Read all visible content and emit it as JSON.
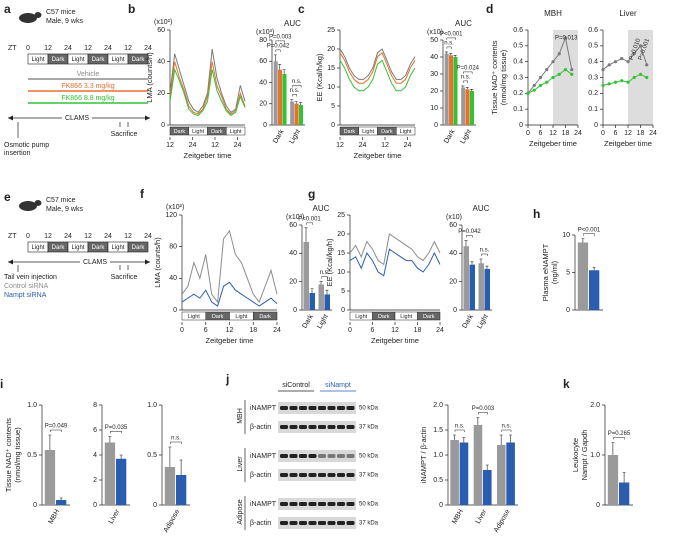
{
  "diagrams": [
    {
      "panel": "a",
      "title": [
        "C57 mice",
        "Male, 9 wks"
      ],
      "zt": "ZT",
      "hours": [
        0,
        12,
        24,
        12,
        24,
        12,
        24
      ],
      "phases": [
        "Light",
        "Dark",
        "Light",
        "Dark",
        "Light",
        "Dark"
      ],
      "groups": [
        {
          "name": "Vehicle",
          "color": "#8c8c8c"
        },
        {
          "name": "FK866 3.3 mg/kg",
          "color": "#e8702a"
        },
        {
          "name": "FK866 8.8 mg/kg",
          "color": "#33c233"
        }
      ],
      "clams": "CLAMS",
      "start": [
        "Osmotic pump",
        "insertion"
      ],
      "end": "Sacrifice"
    },
    {
      "panel": "e",
      "title": [
        "C57 mice",
        "Male, 9 wks"
      ],
      "zt": "ZT",
      "hours": [
        0,
        12,
        24,
        12,
        24,
        12,
        24
      ],
      "phases": [
        "Light",
        "Dark",
        "Light",
        "Dark",
        "Light",
        "Dark"
      ],
      "groups": [
        {
          "name": "Control siRNA",
          "color": "#8c8c8c"
        },
        {
          "name": "Nampt siRNA",
          "color": "#2a5db0"
        }
      ],
      "clams": "CLAMS",
      "start": [
        "Tail vein injection"
      ],
      "end": "Sacrifice"
    }
  ],
  "blot": {
    "panel": "j",
    "columns": [
      "siControl",
      "siNampt"
    ],
    "tissues": [
      {
        "name": "MBH",
        "rows": [
          "iNAMPT",
          "β-actin"
        ],
        "sizes": [
          "50 kDa",
          "37 kDa"
        ]
      },
      {
        "name": "Liver",
        "rows": [
          "iNAMPT",
          "β-actin"
        ],
        "sizes": [
          "50 kDa",
          "37 kDa"
        ]
      },
      {
        "name": "Adipose",
        "rows": [
          "iNAMPT",
          "β-actin"
        ],
        "sizes": [
          "50 kDa",
          "37 kDa"
        ]
      }
    ]
  },
  "chart_data": [
    {
      "type": "line",
      "panel": "b",
      "ylabel": "LMA (counts/h)",
      "yunit": "(x10²)",
      "xlabel": "Zeitgeber time",
      "x": [
        0,
        2.5,
        5,
        7.5,
        10,
        12.5,
        15,
        17.5,
        20,
        22.5,
        25,
        27.5,
        30,
        32.5,
        35,
        37.5,
        40
      ],
      "xlim": [
        0,
        40
      ],
      "xticks": [
        {
          "value": 0,
          "label": "12"
        },
        {
          "value": 12,
          "label": "24"
        },
        {
          "value": 24,
          "label": "12"
        },
        {
          "value": 36,
          "label": "24"
        }
      ],
      "ylim": [
        0,
        60
      ],
      "yticks": [
        0,
        20,
        40,
        60
      ],
      "phases": [
        "Dark",
        "Light",
        "Dark",
        "Light"
      ],
      "series": [
        {
          "color": "#7a7a7a",
          "values": [
            20,
            45,
            35,
            25,
            15,
            10,
            8,
            12,
            20,
            48,
            30,
            20,
            12,
            8,
            10,
            25,
            15
          ]
        },
        {
          "color": "#e8702a",
          "values": [
            18,
            40,
            30,
            22,
            12,
            8,
            7,
            10,
            18,
            40,
            25,
            18,
            10,
            7,
            9,
            20,
            12
          ]
        },
        {
          "color": "#33c233",
          "values": [
            15,
            35,
            28,
            20,
            10,
            7,
            6,
            9,
            15,
            35,
            22,
            15,
            9,
            6,
            8,
            18,
            11
          ]
        }
      ]
    },
    {
      "type": "bar",
      "title": "AUC",
      "yunit": "(x10³)",
      "categories": [
        "Dark",
        "Light"
      ],
      "ylim": [
        0,
        80
      ],
      "yticks": [
        0,
        20,
        40,
        60,
        80
      ],
      "series": [
        {
          "color": "#9a9a9a",
          "values": [
            60,
            22
          ],
          "errors": [
            6,
            2
          ]
        },
        {
          "color": "#e8702a",
          "values": [
            52,
            20
          ],
          "errors": [
            5,
            2
          ]
        },
        {
          "color": "#33c233",
          "values": [
            48,
            19
          ],
          "errors": [
            4,
            2
          ]
        }
      ],
      "annotations": [
        "P=0.003",
        "P=0.042",
        "n.s.",
        "n.s."
      ]
    },
    {
      "type": "line",
      "panel": "c",
      "ylabel": "EE (Kcal/h/kg)",
      "xlabel": "Zeitgeber time",
      "x": [
        0,
        2.5,
        5,
        7.5,
        10,
        12.5,
        15,
        17.5,
        20,
        22.5,
        25,
        27.5,
        30,
        32.5,
        35,
        37.5,
        40
      ],
      "xlim": [
        0,
        40
      ],
      "xticks": [
        {
          "value": 0,
          "label": "12"
        },
        {
          "value": 12,
          "label": "24"
        },
        {
          "value": 24,
          "label": "12"
        },
        {
          "value": 36,
          "label": "24"
        }
      ],
      "ylim": [
        0,
        25
      ],
      "yticks": [
        0,
        5,
        10,
        15,
        20,
        25
      ],
      "phases": [
        "Dark",
        "Light",
        "Dark",
        "Light"
      ],
      "series": [
        {
          "color": "#7a7a7a",
          "values": [
            20,
            18,
            15,
            13,
            12,
            12,
            13,
            15,
            19,
            20,
            17,
            14,
            12,
            12,
            13,
            16,
            18
          ]
        },
        {
          "color": "#e8702a",
          "values": [
            19,
            17,
            14,
            12,
            11,
            11,
            12,
            14,
            18,
            19,
            16,
            13,
            11,
            11,
            12,
            15,
            17
          ]
        },
        {
          "color": "#33c233",
          "values": [
            17,
            15,
            12,
            10,
            9,
            9,
            10,
            12,
            16,
            17,
            14,
            11,
            9,
            9,
            10,
            13,
            15
          ]
        }
      ]
    },
    {
      "type": "bar",
      "title": "AUC",
      "yunit": "(x10)",
      "categories": [
        "Dark",
        "Light"
      ],
      "ylim": [
        0,
        50
      ],
      "yticks": [
        0,
        10,
        20,
        30,
        40,
        50
      ],
      "series": [
        {
          "color": "#9a9a9a",
          "values": [
            42,
            22
          ],
          "errors": [
            1,
            1
          ]
        },
        {
          "color": "#e8702a",
          "values": [
            41,
            21
          ],
          "errors": [
            1,
            1
          ]
        },
        {
          "color": "#33c233",
          "values": [
            40,
            20
          ],
          "errors": [
            1,
            1
          ]
        }
      ],
      "annotations": [
        "P<0.001",
        "n.s.",
        "P=0.024",
        "n.s."
      ]
    },
    {
      "type": "line",
      "panel": "d",
      "title": "MBH",
      "ylabel": [
        "Tissue NAD⁺ contents",
        "(nmol/mg tissue)"
      ],
      "xlabel": "Zeitgeber time",
      "x": [
        0,
        3,
        6,
        9,
        12,
        15,
        18,
        21
      ],
      "xlim": [
        0,
        24
      ],
      "xticks": [
        0,
        6,
        12,
        18,
        24
      ],
      "ylim": [
        0,
        0.6
      ],
      "yticks": [
        0,
        0.1,
        0.2,
        0.3,
        0.4,
        0.5,
        0.6
      ],
      "shade": [
        12,
        24
      ],
      "series": [
        {
          "color": "#7a7a7a",
          "values": [
            0.2,
            0.25,
            0.3,
            0.35,
            0.4,
            0.45,
            0.55,
            0.35
          ]
        },
        {
          "color": "#33c233",
          "values": [
            0.2,
            0.22,
            0.25,
            0.27,
            0.3,
            0.32,
            0.35,
            0.32
          ]
        }
      ],
      "annotations": [
        "P=0.013"
      ]
    },
    {
      "type": "line",
      "title": "Liver",
      "xlabel": "Zeitgeber time",
      "x": [
        0,
        3,
        6,
        9,
        12,
        15,
        18,
        21
      ],
      "xlim": [
        0,
        24
      ],
      "xticks": [
        0,
        6,
        12,
        18,
        24
      ],
      "ylim": [
        0,
        0.6
      ],
      "yticks": [
        0,
        0.1,
        0.2,
        0.3,
        0.4,
        0.5,
        0.6
      ],
      "shade": [
        12,
        24
      ],
      "series": [
        {
          "color": "#7a7a7a",
          "values": [
            0.35,
            0.38,
            0.4,
            0.42,
            0.4,
            0.45,
            0.5,
            0.38
          ]
        },
        {
          "color": "#33c233",
          "values": [
            0.25,
            0.26,
            0.27,
            0.28,
            0.27,
            0.3,
            0.32,
            0.3
          ]
        }
      ],
      "annotations": [
        "P=0.010",
        "P=0.001"
      ]
    },
    {
      "type": "line",
      "panel": "f",
      "ylabel": "LMA (counts/h)",
      "yunit": "(x10²)",
      "xlabel": "Zeitgeber time",
      "x": [
        0,
        1.5,
        3,
        4.5,
        6,
        7.5,
        9,
        10.5,
        12,
        13.5,
        15,
        16.5,
        18,
        19.5,
        21,
        22.5,
        24
      ],
      "xlim": [
        0,
        24
      ],
      "xticks": [
        0,
        6,
        12,
        18,
        24
      ],
      "ylim": [
        0,
        120
      ],
      "yticks": [
        0,
        40,
        80,
        120
      ],
      "phases": [
        "Light",
        "Dark",
        "Light",
        "Dark"
      ],
      "series": [
        {
          "color": "#8c8c8c",
          "values": [
            20,
            30,
            60,
            40,
            70,
            20,
            10,
            90,
            100,
            70,
            60,
            40,
            20,
            10,
            30,
            50,
            20
          ]
        },
        {
          "color": "#2a5db0",
          "values": [
            10,
            15,
            20,
            15,
            25,
            10,
            5,
            30,
            35,
            25,
            20,
            15,
            10,
            5,
            10,
            15,
            8
          ]
        }
      ]
    },
    {
      "type": "bar",
      "title": "AUC",
      "yunit": "(x10³)",
      "categories": [
        "Dark",
        "Light"
      ],
      "ylim": [
        0,
        60
      ],
      "yticks": [
        0,
        20,
        40,
        60
      ],
      "series": [
        {
          "color": "#9a9a9a",
          "values": [
            48,
            18
          ],
          "errors": [
            10,
            2
          ]
        },
        {
          "color": "#2a5db0",
          "values": [
            12,
            11
          ],
          "errors": [
            3,
            3
          ]
        }
      ],
      "annotations": [
        "P<0.001",
        "n.s."
      ]
    },
    {
      "type": "line",
      "panel": "g",
      "ylabel": "EE (Kcal/kg/h)",
      "xlabel": "Zeitgeber time",
      "x": [
        0,
        1.5,
        3,
        4.5,
        6,
        7.5,
        9,
        10.5,
        12,
        13.5,
        15,
        16.5,
        18,
        19.5,
        21,
        22.5,
        24
      ],
      "xlim": [
        0,
        24
      ],
      "xticks": [
        0,
        6,
        12,
        18,
        24
      ],
      "ylim": [
        0,
        25
      ],
      "yticks": [
        0,
        5,
        10,
        15,
        20,
        25
      ],
      "phases": [
        "Light",
        "Dark",
        "Light",
        "Dark"
      ],
      "series": [
        {
          "color": "#8c8c8c",
          "values": [
            15,
            17,
            14,
            18,
            16,
            13,
            12,
            20,
            19,
            18,
            17,
            16,
            14,
            13,
            15,
            18,
            15
          ]
        },
        {
          "color": "#2a5db0",
          "values": [
            13,
            14,
            11,
            15,
            13,
            10,
            9,
            16,
            15,
            14,
            13,
            13,
            11,
            10,
            12,
            15,
            12
          ]
        }
      ]
    },
    {
      "type": "bar",
      "title": "AUC",
      "yunit": "(x10)",
      "categories": [
        "Dark",
        "Light"
      ],
      "ylim": [
        0,
        60
      ],
      "yticks": [
        0,
        20,
        40,
        60
      ],
      "series": [
        {
          "color": "#9a9a9a",
          "values": [
            45,
            33
          ],
          "errors": [
            4,
            3
          ]
        },
        {
          "color": "#2a5db0",
          "values": [
            32,
            29
          ],
          "errors": [
            2,
            2
          ]
        }
      ],
      "annotations": [
        "P=0.042",
        "n.s."
      ]
    },
    {
      "type": "bar",
      "panel": "h",
      "ylabel": [
        "Plasma eNAMPT",
        "(ng/ml)"
      ],
      "categories": [
        null
      ],
      "ylim": [
        0,
        10
      ],
      "yticks": [
        0,
        5,
        10
      ],
      "series": [
        {
          "color": "#9a9a9a",
          "values": [
            9.0
          ],
          "errors": [
            0.5
          ]
        },
        {
          "color": "#2a5db0",
          "values": [
            5.3
          ],
          "errors": [
            0.4
          ]
        }
      ],
      "annotations": [
        "P<0.001"
      ]
    },
    {
      "type": "bar",
      "panel": "i",
      "ylabel": [
        "Tissue NAD⁺ contents",
        "(nmol/mg tissue)"
      ],
      "categories": [
        "MBH"
      ],
      "ylim": [
        0,
        1
      ],
      "yticks": [
        0,
        0.5,
        {
          "value": 1,
          "label": "1.0"
        }
      ],
      "series": [
        {
          "color": "#9a9a9a",
          "values": [
            0.55
          ],
          "errors": [
            0.15
          ]
        },
        {
          "color": "#2a5db0",
          "values": [
            0.05
          ],
          "errors": [
            0.02
          ]
        }
      ],
      "annotations": [
        "P=0.049"
      ]
    },
    {
      "type": "bar",
      "categories": [
        "Liver"
      ],
      "ylim": [
        0,
        8
      ],
      "yticks": [
        0,
        2,
        4,
        6,
        8
      ],
      "series": [
        {
          "color": "#9a9a9a",
          "values": [
            5
          ],
          "errors": [
            0.5
          ]
        },
        {
          "color": "#2a5db0",
          "values": [
            3.7
          ],
          "errors": [
            0.3
          ]
        }
      ],
      "annotations": [
        "P=0.035"
      ]
    },
    {
      "type": "bar",
      "categories": [
        "Adipose"
      ],
      "ylim": [
        0,
        1
      ],
      "yticks": [
        0,
        0.5,
        {
          "value": 1,
          "label": "1.0"
        }
      ],
      "series": [
        {
          "color": "#9a9a9a",
          "values": [
            0.38
          ],
          "errors": [
            0.2
          ]
        },
        {
          "color": "#2a5db0",
          "values": [
            0.3
          ],
          "errors": [
            0.15
          ]
        }
      ],
      "annotations": [
        "n.s."
      ]
    },
    {
      "type": "bar",
      "ylabel": "iNAMPT / β-actin",
      "categories": [
        "MBH",
        "Liver",
        "Adipose"
      ],
      "ylim": [
        0,
        2
      ],
      "yticks": [
        0,
        0.5,
        {
          "value": 1,
          "label": "1.0"
        },
        1.5,
        {
          "value": 2,
          "label": "2.0"
        }
      ],
      "series": [
        {
          "color": "#9a9a9a",
          "values": [
            1.3,
            1.6,
            1.2
          ],
          "errors": [
            0.1,
            0.15,
            0.2
          ]
        },
        {
          "color": "#2a5db0",
          "values": [
            1.25,
            0.7,
            1.25
          ],
          "errors": [
            0.1,
            0.1,
            0.15
          ]
        }
      ],
      "annotations": [
        "n.s.",
        "P=0.003",
        "n.s."
      ]
    },
    {
      "type": "bar",
      "panel": "k",
      "ylabel": [
        "Leukocyte",
        "Nampt / Gapdh"
      ],
      "categories": [
        null
      ],
      "ylim": [
        0,
        2
      ],
      "yticks": [
        0,
        {
          "value": 1,
          "label": "1.0"
        },
        {
          "value": 2,
          "label": "2.0"
        }
      ],
      "series": [
        {
          "color": "#9a9a9a",
          "values": [
            1.0
          ],
          "errors": [
            0.25
          ]
        },
        {
          "color": "#2a5db0",
          "values": [
            0.45
          ],
          "errors": [
            0.2
          ]
        }
      ],
      "annotations": [
        "P=0.265"
      ]
    }
  ]
}
